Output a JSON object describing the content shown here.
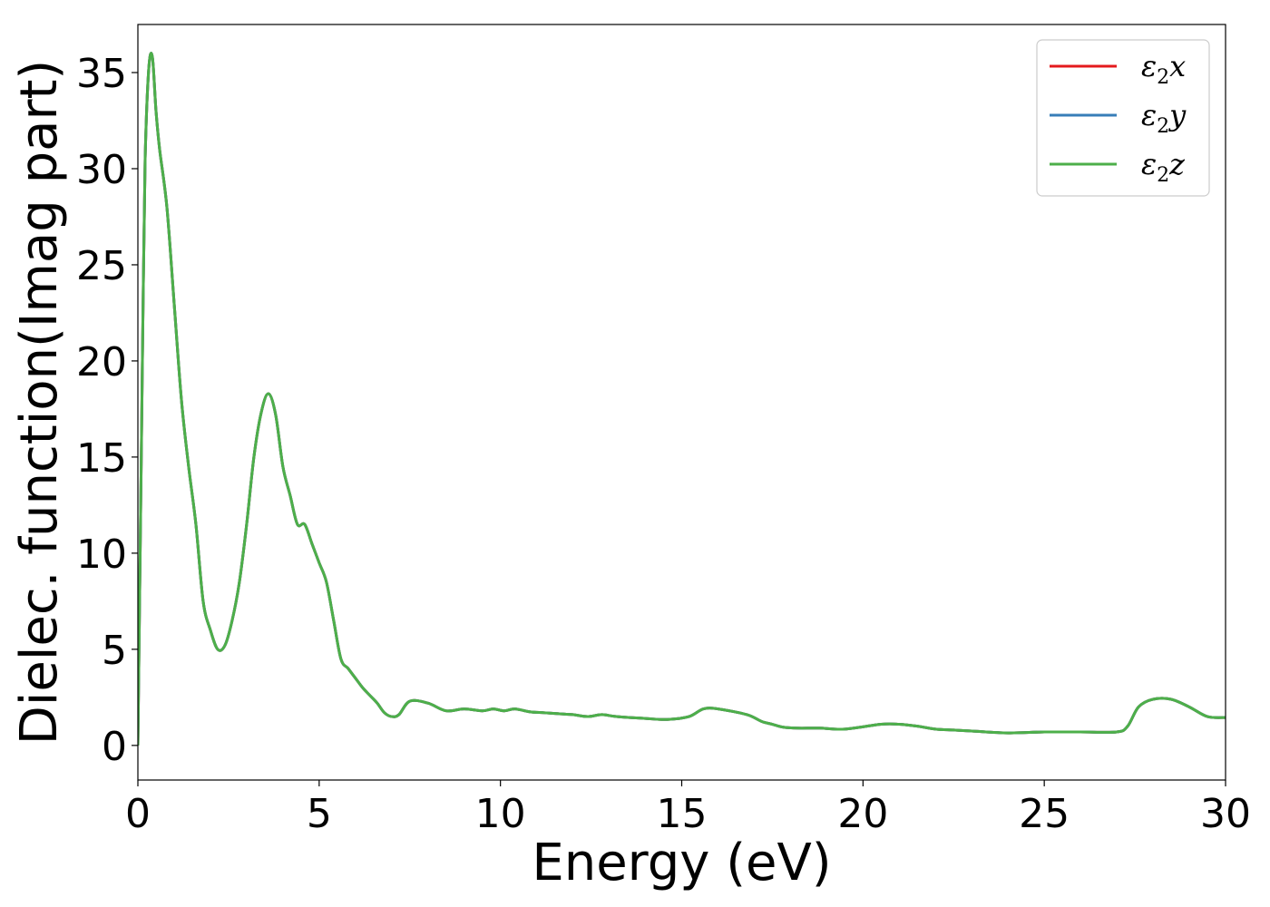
{
  "chart_data": {
    "type": "line",
    "title": "",
    "xlabel": "Energy (eV)",
    "ylabel": "Dielec. function(Imag part)",
    "xlim": [
      0,
      30
    ],
    "ylim": [
      -1.8,
      37.5
    ],
    "xticks": [
      0,
      5,
      10,
      15,
      20,
      25,
      30
    ],
    "yticks": [
      0,
      5,
      10,
      15,
      20,
      25,
      30,
      35
    ],
    "grid": false,
    "legend_position": "top-right",
    "series": [
      {
        "name": "ε2x",
        "symbol": "ε",
        "subscript": "2",
        "axis": "x",
        "color": "#e41a1c",
        "x": [
          0.0,
          0.05,
          0.1,
          0.15,
          0.2,
          0.3,
          0.4,
          0.5,
          0.6,
          0.8,
          1.0,
          1.2,
          1.4,
          1.6,
          1.8,
          2.0,
          2.2,
          2.4,
          2.6,
          2.8,
          3.0,
          3.2,
          3.4,
          3.6,
          3.8,
          4.0,
          4.2,
          4.4,
          4.6,
          4.8,
          5.0,
          5.2,
          5.4,
          5.6,
          5.8,
          6.0,
          6.2,
          6.4,
          6.6,
          6.8,
          7.0,
          7.2,
          7.5,
          8.0,
          8.5,
          9.0,
          9.5,
          9.8,
          10.1,
          10.4,
          10.8,
          11.2,
          11.6,
          12.0,
          12.4,
          12.8,
          13.2,
          14.0,
          14.6,
          15.2,
          15.6,
          16.0,
          16.8,
          17.2,
          17.5,
          17.8,
          18.2,
          18.8,
          19.5,
          20.5,
          21.0,
          21.5,
          22.0,
          22.5,
          23.0,
          24.0,
          25.0,
          26.0,
          27.0,
          27.3,
          27.6,
          28.0,
          28.5,
          29.0,
          29.5,
          30.0
        ],
        "values": [
          0.0,
          8.0,
          16.0,
          24.0,
          30.5,
          35.2,
          35.8,
          33.0,
          31.0,
          28.0,
          23.0,
          18.0,
          14.5,
          11.5,
          7.5,
          6.0,
          5.0,
          5.2,
          6.5,
          8.5,
          11.5,
          15.0,
          17.3,
          18.3,
          17.2,
          14.5,
          13.0,
          11.5,
          11.5,
          10.5,
          9.5,
          8.5,
          6.5,
          4.5,
          4.0,
          3.5,
          3.0,
          2.6,
          2.2,
          1.7,
          1.5,
          1.6,
          2.3,
          2.2,
          1.8,
          1.9,
          1.8,
          1.9,
          1.8,
          1.9,
          1.75,
          1.7,
          1.65,
          1.6,
          1.5,
          1.6,
          1.5,
          1.4,
          1.35,
          1.5,
          1.9,
          1.9,
          1.6,
          1.25,
          1.1,
          0.95,
          0.9,
          0.9,
          0.85,
          1.1,
          1.1,
          1.0,
          0.85,
          0.8,
          0.75,
          0.65,
          0.7,
          0.7,
          0.7,
          1.0,
          2.0,
          2.4,
          2.4,
          2.0,
          1.5,
          1.45
        ]
      },
      {
        "name": "ε2y",
        "symbol": "ε",
        "subscript": "2",
        "axis": "y",
        "color": "#377eb8",
        "x": [
          0.0,
          0.05,
          0.1,
          0.15,
          0.2,
          0.3,
          0.4,
          0.5,
          0.6,
          0.8,
          1.0,
          1.2,
          1.4,
          1.6,
          1.8,
          2.0,
          2.2,
          2.4,
          2.6,
          2.8,
          3.0,
          3.2,
          3.4,
          3.6,
          3.8,
          4.0,
          4.2,
          4.4,
          4.6,
          4.8,
          5.0,
          5.2,
          5.4,
          5.6,
          5.8,
          6.0,
          6.2,
          6.4,
          6.6,
          6.8,
          7.0,
          7.2,
          7.5,
          8.0,
          8.5,
          9.0,
          9.5,
          9.8,
          10.1,
          10.4,
          10.8,
          11.2,
          11.6,
          12.0,
          12.4,
          12.8,
          13.2,
          14.0,
          14.6,
          15.2,
          15.6,
          16.0,
          16.8,
          17.2,
          17.5,
          17.8,
          18.2,
          18.8,
          19.5,
          20.5,
          21.0,
          21.5,
          22.0,
          22.5,
          23.0,
          24.0,
          25.0,
          26.0,
          27.0,
          27.3,
          27.6,
          28.0,
          28.5,
          29.0,
          29.5,
          30.0
        ],
        "values": [
          0.0,
          8.0,
          16.0,
          24.0,
          30.5,
          35.2,
          35.8,
          33.0,
          31.0,
          28.0,
          23.0,
          18.0,
          14.5,
          11.5,
          7.5,
          6.0,
          5.0,
          5.2,
          6.5,
          8.5,
          11.5,
          15.0,
          17.3,
          18.3,
          17.2,
          14.5,
          13.0,
          11.5,
          11.5,
          10.5,
          9.5,
          8.5,
          6.5,
          4.5,
          4.0,
          3.5,
          3.0,
          2.6,
          2.2,
          1.7,
          1.5,
          1.6,
          2.3,
          2.2,
          1.8,
          1.9,
          1.8,
          1.9,
          1.8,
          1.9,
          1.75,
          1.7,
          1.65,
          1.6,
          1.5,
          1.6,
          1.5,
          1.4,
          1.35,
          1.5,
          1.9,
          1.9,
          1.6,
          1.25,
          1.1,
          0.95,
          0.9,
          0.9,
          0.85,
          1.1,
          1.1,
          1.0,
          0.85,
          0.8,
          0.75,
          0.65,
          0.7,
          0.7,
          0.7,
          1.0,
          2.0,
          2.4,
          2.4,
          2.0,
          1.5,
          1.45
        ]
      },
      {
        "name": "ε2z",
        "symbol": "ε",
        "subscript": "2",
        "axis": "z",
        "color": "#4daf4a",
        "x": [
          0.0,
          0.05,
          0.1,
          0.15,
          0.2,
          0.3,
          0.4,
          0.5,
          0.6,
          0.8,
          1.0,
          1.2,
          1.4,
          1.6,
          1.8,
          2.0,
          2.2,
          2.4,
          2.6,
          2.8,
          3.0,
          3.2,
          3.4,
          3.6,
          3.8,
          4.0,
          4.2,
          4.4,
          4.6,
          4.8,
          5.0,
          5.2,
          5.4,
          5.6,
          5.8,
          6.0,
          6.2,
          6.4,
          6.6,
          6.8,
          7.0,
          7.2,
          7.5,
          8.0,
          8.5,
          9.0,
          9.5,
          9.8,
          10.1,
          10.4,
          10.8,
          11.2,
          11.6,
          12.0,
          12.4,
          12.8,
          13.2,
          14.0,
          14.6,
          15.2,
          15.6,
          16.0,
          16.8,
          17.2,
          17.5,
          17.8,
          18.2,
          18.8,
          19.5,
          20.5,
          21.0,
          21.5,
          22.0,
          22.5,
          23.0,
          24.0,
          25.0,
          26.0,
          27.0,
          27.3,
          27.6,
          28.0,
          28.5,
          29.0,
          29.5,
          30.0
        ],
        "values": [
          0.0,
          8.0,
          16.0,
          24.0,
          30.5,
          35.2,
          35.8,
          33.0,
          31.0,
          28.0,
          23.0,
          18.0,
          14.5,
          11.5,
          7.5,
          6.0,
          5.0,
          5.2,
          6.5,
          8.5,
          11.5,
          15.0,
          17.3,
          18.3,
          17.2,
          14.5,
          13.0,
          11.5,
          11.5,
          10.5,
          9.5,
          8.5,
          6.5,
          4.5,
          4.0,
          3.5,
          3.0,
          2.6,
          2.2,
          1.7,
          1.5,
          1.6,
          2.3,
          2.2,
          1.8,
          1.9,
          1.8,
          1.9,
          1.8,
          1.9,
          1.75,
          1.7,
          1.65,
          1.6,
          1.5,
          1.6,
          1.5,
          1.4,
          1.35,
          1.5,
          1.9,
          1.9,
          1.6,
          1.25,
          1.1,
          0.95,
          0.9,
          0.9,
          0.85,
          1.1,
          1.1,
          1.0,
          0.85,
          0.8,
          0.75,
          0.65,
          0.7,
          0.7,
          0.7,
          1.0,
          2.0,
          2.4,
          2.4,
          2.0,
          1.5,
          1.45
        ]
      }
    ]
  }
}
